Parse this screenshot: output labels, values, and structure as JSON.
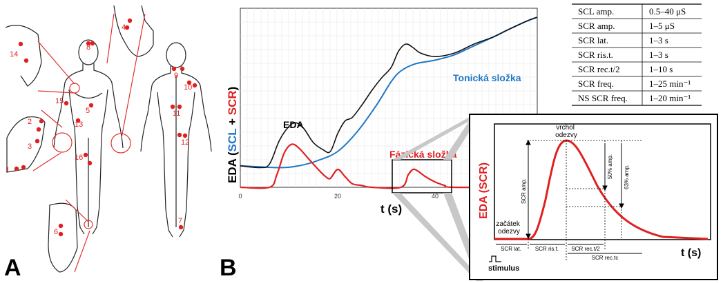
{
  "panels": {
    "a": "A",
    "b": "B"
  },
  "body_sites": [
    "1",
    "2",
    "3",
    "4",
    "5",
    "6",
    "7",
    "8",
    "9",
    "10",
    "11",
    "12",
    "13",
    "14",
    "15",
    "16"
  ],
  "main_chart": {
    "x_ticks": [
      "0",
      "20",
      "40"
    ],
    "xlabel": "t (s)",
    "ylabel_parts": [
      "EDA (",
      "SCL",
      " + ",
      "SCR",
      ")"
    ],
    "labels": {
      "eda": "EDA",
      "tonic": "Tonická složka",
      "phasic": "Fázická složka"
    },
    "colors": {
      "eda": "#111111",
      "tonic": "#1f77c4",
      "phasic": "#e02020"
    },
    "series": {
      "eda": [
        [
          0,
          0.12
        ],
        [
          4,
          0.11
        ],
        [
          6,
          0.13
        ],
        [
          8,
          0.26
        ],
        [
          10,
          0.34
        ],
        [
          11.5,
          0.36
        ],
        [
          13,
          0.33
        ],
        [
          15,
          0.25
        ],
        [
          17,
          0.21
        ],
        [
          18.5,
          0.2
        ],
        [
          20,
          0.3
        ],
        [
          21.5,
          0.37
        ],
        [
          23,
          0.39
        ],
        [
          25,
          0.46
        ],
        [
          27,
          0.54
        ],
        [
          29,
          0.61
        ],
        [
          31,
          0.67
        ],
        [
          32.5,
          0.76
        ],
        [
          34,
          0.8
        ],
        [
          35.5,
          0.78
        ],
        [
          37,
          0.75
        ],
        [
          40,
          0.73
        ],
        [
          44,
          0.75
        ],
        [
          48,
          0.8
        ],
        [
          52,
          0.84
        ],
        [
          55,
          0.88
        ],
        [
          59,
          0.93
        ],
        [
          61,
          0.95
        ]
      ],
      "tonic": [
        [
          0,
          0.12
        ],
        [
          8,
          0.11
        ],
        [
          12,
          0.12
        ],
        [
          16,
          0.15
        ],
        [
          20,
          0.2
        ],
        [
          24,
          0.31
        ],
        [
          28,
          0.46
        ],
        [
          31,
          0.59
        ],
        [
          33,
          0.65
        ],
        [
          36,
          0.69
        ],
        [
          40,
          0.71
        ],
        [
          44,
          0.74
        ],
        [
          48,
          0.79
        ],
        [
          52,
          0.84
        ],
        [
          55,
          0.88
        ],
        [
          59,
          0.93
        ],
        [
          61,
          0.95
        ]
      ],
      "phasic": [
        [
          0,
          0
        ],
        [
          6,
          0
        ],
        [
          7.5,
          0.07
        ],
        [
          9,
          0.19
        ],
        [
          10.5,
          0.24
        ],
        [
          12,
          0.22
        ],
        [
          14,
          0.16
        ],
        [
          16,
          0.1
        ],
        [
          17.5,
          0.06
        ],
        [
          18.5,
          0.05
        ],
        [
          20,
          0.1
        ],
        [
          21.5,
          0.06
        ],
        [
          23,
          0.02
        ],
        [
          25,
          0.01
        ],
        [
          27,
          0
        ],
        [
          33,
          0
        ],
        [
          34.5,
          0.07
        ],
        [
          35.5,
          0.1
        ],
        [
          36.5,
          0.09
        ],
        [
          38,
          0.06
        ],
        [
          40,
          0.03
        ],
        [
          42,
          0.01
        ],
        [
          44,
          0
        ],
        [
          61,
          0
        ]
      ]
    }
  },
  "inset": {
    "ylabel": "EDA (SCR)",
    "xlabel": "t (s)",
    "peak_label": [
      "vrchol",
      "odezvy"
    ],
    "onset_label": [
      "začátek",
      "odezvy"
    ],
    "scr_amp": "SCR amp.",
    "amp50": "50% amp.",
    "amp63": "63% amp.",
    "phases": [
      "SCR lat.",
      "SCR ris.t.",
      "SCR rec.t/2"
    ],
    "rec_tc": "SCR rec.tc",
    "stimulus": "stimulus"
  },
  "table": {
    "rows": [
      [
        "SCL amp.",
        "0.5–40 μS"
      ],
      [
        "SCR amp.",
        "1–5 μS"
      ],
      [
        "SCR lat.",
        "1–3 s"
      ],
      [
        "SCR ris.t.",
        "1–3 s"
      ],
      [
        "SCR rec.t/2",
        "1–10 s"
      ],
      [
        "SCR freq.",
        "1–25 min⁻¹"
      ],
      [
        "NS SCR freq.",
        "1–20 min⁻¹"
      ]
    ]
  }
}
